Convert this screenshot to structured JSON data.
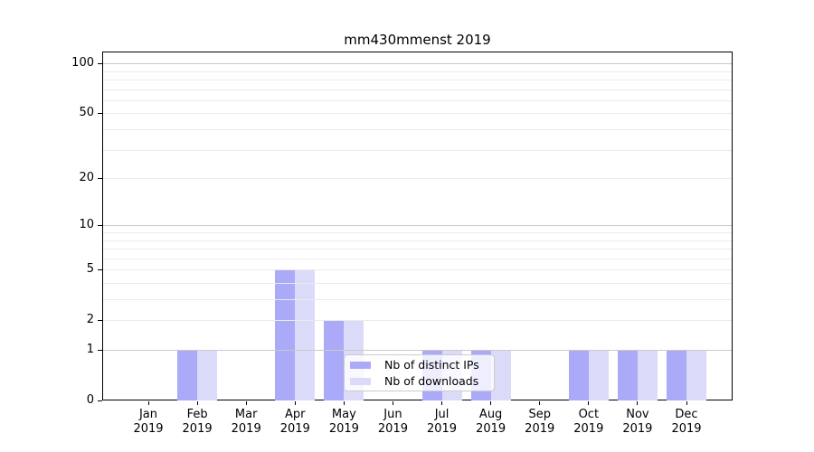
{
  "chart_data": {
    "type": "bar",
    "title": "mm430mmenst 2019",
    "categories": [
      "Jan 2019",
      "Feb 2019",
      "Mar 2019",
      "Apr 2019",
      "May 2019",
      "Jun 2019",
      "Jul 2019",
      "Aug 2019",
      "Sep 2019",
      "Oct 2019",
      "Nov 2019",
      "Dec 2019"
    ],
    "series": [
      {
        "name": "Nb of distinct IPs",
        "color": "#aaaaf8",
        "values": [
          0,
          1,
          0,
          5,
          2,
          0,
          1,
          1,
          0,
          1,
          1,
          1
        ]
      },
      {
        "name": "Nb of downloads",
        "color": "#dbdbf9",
        "values": [
          0,
          1,
          0,
          5,
          2,
          0,
          1,
          1,
          0,
          1,
          1,
          1
        ]
      }
    ],
    "xlabel": "",
    "ylabel": "",
    "yscale": "log1p",
    "ylim": [
      0,
      118
    ],
    "y_ticks": [
      0,
      1,
      2,
      5,
      10,
      20,
      50,
      100
    ],
    "y_major_gridlines": [
      1,
      10,
      100
    ],
    "y_minor_gridlines": [
      2,
      3,
      4,
      5,
      6,
      7,
      8,
      9,
      20,
      30,
      40,
      50,
      60,
      70,
      80,
      90
    ],
    "grid": true,
    "legend_position": "lower-center",
    "colors": {
      "grid_minor": "#eaeaea",
      "grid_major": "#c9c9c9",
      "spine": "#000000",
      "legend_border": "#cccccc",
      "background": "#ffffff"
    }
  }
}
